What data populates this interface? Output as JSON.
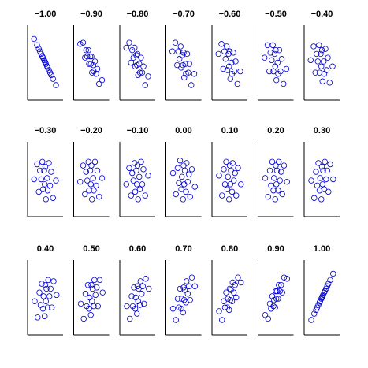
{
  "chart_data": [
    {
      "type": "scatter",
      "title": "−1.00",
      "x": [
        1.8,
        1.3,
        1.0,
        0.8,
        0.6,
        0.4,
        0.3,
        0.1,
        0.0,
        -0.1,
        -0.2,
        -0.4,
        -0.5,
        -0.7,
        -0.9,
        -1.1,
        -1.4,
        -1.9
      ],
      "y": [
        -1.8,
        -1.3,
        -1.0,
        -0.8,
        -0.6,
        -0.4,
        -0.3,
        -0.1,
        0.0,
        0.1,
        0.2,
        0.4,
        0.5,
        0.7,
        0.9,
        1.1,
        1.4,
        1.9
      ],
      "xlim": [
        -3,
        3
      ],
      "ylim": [
        -3,
        3
      ],
      "color": "#0000cc"
    },
    {
      "type": "scatter",
      "title": "−0.90",
      "x": [
        1.8,
        1.3,
        1.0,
        0.8,
        0.6,
        0.4,
        0.3,
        0.1,
        0.0,
        -0.1,
        -0.2,
        -0.4,
        -0.5,
        -0.7,
        -0.9,
        -1.1,
        -1.4,
        -1.9
      ],
      "y": [
        -1.4,
        -1.7,
        -0.5,
        -0.9,
        0.1,
        -0.7,
        -0.2,
        -0.8,
        0.5,
        -0.1,
        0.5,
        -0.1,
        1.0,
        0.5,
        1.0,
        0.4,
        1.6,
        1.5
      ],
      "xlim": [
        -3,
        3
      ],
      "ylim": [
        -3,
        3
      ],
      "color": "#0000cc"
    },
    {
      "type": "scatter",
      "title": "−0.80",
      "x": [
        1.8,
        1.3,
        1.0,
        0.8,
        0.6,
        0.4,
        0.3,
        0.1,
        0.0,
        -0.1,
        -0.2,
        -0.4,
        -0.5,
        -0.7,
        -0.9,
        -1.1,
        -1.4,
        -1.9
      ],
      "y": [
        -1.1,
        -1.8,
        -0.3,
        -0.8,
        0.4,
        -0.8,
        -0.1,
        -1.0,
        0.7,
        -0.2,
        0.6,
        -0.3,
        1.2,
        0.4,
        1.0,
        0.0,
        1.6,
        1.2
      ],
      "xlim": [
        -3,
        3
      ],
      "ylim": [
        -3,
        3
      ],
      "color": "#0000cc"
    },
    {
      "type": "scatter",
      "title": "−0.70",
      "x": [
        1.8,
        1.3,
        1.0,
        0.8,
        0.6,
        0.4,
        0.3,
        0.1,
        0.0,
        -0.1,
        -0.2,
        -0.4,
        -0.5,
        -0.7,
        -0.9,
        -1.1,
        -1.4,
        -1.9
      ],
      "y": [
        -0.9,
        -1.8,
        -0.1,
        -0.8,
        0.7,
        -0.9,
        -0.1,
        -1.2,
        0.8,
        -0.2,
        0.6,
        -0.4,
        1.3,
        0.3,
        0.9,
        -0.2,
        1.6,
        0.9
      ],
      "xlim": [
        -3,
        3
      ],
      "ylim": [
        -3,
        3
      ],
      "color": "#0000cc"
    },
    {
      "type": "scatter",
      "title": "−0.60",
      "x": [
        1.8,
        1.3,
        1.0,
        0.8,
        0.6,
        0.4,
        0.3,
        0.1,
        0.0,
        -0.1,
        -0.2,
        -0.4,
        -0.5,
        -0.7,
        -0.9,
        -1.1,
        -1.4,
        -1.9
      ],
      "y": [
        -0.7,
        -1.7,
        0.1,
        -0.7,
        0.8,
        -0.9,
        0.0,
        -1.3,
        0.9,
        -0.3,
        0.7,
        -0.6,
        1.3,
        0.3,
        0.9,
        -0.5,
        1.5,
        0.7
      ],
      "xlim": [
        -3,
        3
      ],
      "ylim": [
        -3,
        3
      ],
      "color": "#0000cc"
    },
    {
      "type": "scatter",
      "title": "−0.50",
      "x": [
        1.8,
        1.3,
        1.0,
        0.8,
        0.6,
        0.4,
        0.3,
        0.1,
        0.0,
        -0.1,
        -0.2,
        -0.4,
        -0.5,
        -0.7,
        -0.9,
        -1.1,
        -1.4,
        -1.9
      ],
      "y": [
        -0.5,
        -1.7,
        0.3,
        -0.7,
        1.0,
        -0.9,
        0.0,
        -1.4,
        1.0,
        -0.3,
        0.7,
        -0.7,
        1.4,
        0.2,
        0.8,
        -0.7,
        1.4,
        0.4
      ],
      "xlim": [
        -3,
        3
      ],
      "ylim": [
        -3,
        3
      ],
      "color": "#0000cc"
    },
    {
      "type": "scatter",
      "title": "−0.40",
      "x": [
        1.8,
        1.3,
        1.0,
        0.8,
        0.6,
        0.4,
        0.3,
        0.1,
        0.0,
        -0.1,
        -0.2,
        -0.4,
        -0.5,
        -0.7,
        -0.9,
        -1.1,
        -1.4,
        -1.9
      ],
      "y": [
        -0.3,
        -1.6,
        0.4,
        -0.6,
        1.1,
        -0.9,
        0.1,
        -1.5,
        1.0,
        -0.3,
        0.7,
        -0.8,
        1.4,
        0.1,
        0.7,
        -0.8,
        1.3,
        0.2
      ],
      "xlim": [
        -3,
        3
      ],
      "ylim": [
        -3,
        3
      ],
      "color": "#0000cc"
    },
    {
      "type": "scatter",
      "title": "−0.30",
      "x": [
        1.8,
        1.3,
        1.0,
        0.8,
        0.6,
        0.4,
        0.3,
        0.1,
        0.0,
        -0.1,
        -0.2,
        -0.4,
        -0.5,
        -0.7,
        -0.9,
        -1.1,
        -1.4,
        -1.9
      ],
      "y": [
        -0.1,
        -1.5,
        0.6,
        -0.5,
        1.3,
        -0.9,
        0.1,
        -1.6,
        1.0,
        -0.4,
        0.7,
        -0.8,
        1.4,
        0.0,
        0.7,
        -1.0,
        1.2,
        0.0
      ],
      "xlim": [
        -3,
        3
      ],
      "ylim": [
        -3,
        3
      ],
      "color": "#0000cc"
    },
    {
      "type": "scatter",
      "title": "−0.20",
      "x": [
        1.8,
        1.3,
        1.0,
        0.8,
        0.6,
        0.4,
        0.3,
        0.1,
        0.0,
        -0.1,
        -0.2,
        -0.4,
        -0.5,
        -0.7,
        -0.9,
        -1.1,
        -1.4,
        -1.9
      ],
      "y": [
        0.1,
        -1.4,
        0.7,
        -0.5,
        1.4,
        -0.9,
        0.1,
        -1.6,
        1.1,
        -0.4,
        0.7,
        -0.9,
        1.4,
        -0.1,
        0.6,
        -1.2,
        1.1,
        -0.2
      ],
      "xlim": [
        -3,
        3
      ],
      "ylim": [
        -3,
        3
      ],
      "color": "#0000cc"
    },
    {
      "type": "scatter",
      "title": "−0.10",
      "x": [
        1.8,
        1.3,
        1.0,
        0.8,
        0.6,
        0.4,
        0.3,
        0.1,
        0.0,
        -0.1,
        -0.2,
        -0.4,
        -0.5,
        -0.7,
        -0.9,
        -1.1,
        -1.4,
        -1.9
      ],
      "y": [
        0.3,
        -1.3,
        0.8,
        -0.4,
        1.4,
        -0.8,
        0.2,
        -1.6,
        1.1,
        -0.4,
        0.7,
        -1.0,
        1.3,
        -0.1,
        0.5,
        -1.3,
        0.9,
        -0.4
      ],
      "xlim": [
        -3,
        3
      ],
      "ylim": [
        -3,
        3
      ],
      "color": "#0000cc"
    },
    {
      "type": "scatter",
      "title": "0.00",
      "x": [
        -1.8,
        -1.3,
        -1.0,
        -0.8,
        -0.6,
        -0.4,
        -0.3,
        -0.1,
        0.0,
        0.1,
        0.2,
        0.4,
        0.5,
        0.7,
        0.9,
        1.1,
        1.4,
        1.9
      ],
      "y": [
        0.5,
        -1.2,
        0.9,
        -0.3,
        1.5,
        -0.8,
        0.2,
        -1.6,
        1.1,
        -0.4,
        0.7,
        -1.0,
        1.3,
        -0.2,
        0.4,
        -1.4,
        0.8,
        -0.6
      ],
      "xlim": [
        -3,
        3
      ],
      "ylim": [
        -3,
        3
      ],
      "color": "#0000cc"
    },
    {
      "type": "scatter",
      "title": "0.10",
      "x": [
        -1.8,
        -1.3,
        -1.0,
        -0.8,
        -0.6,
        -0.4,
        -0.3,
        -0.1,
        0.0,
        0.1,
        0.2,
        0.4,
        0.5,
        0.7,
        0.9,
        1.1,
        1.4,
        1.9
      ],
      "y": [
        0.3,
        -1.3,
        0.8,
        -0.4,
        1.4,
        -0.8,
        0.2,
        -1.6,
        1.1,
        -0.4,
        0.7,
        -1.0,
        1.3,
        -0.1,
        0.5,
        -1.3,
        0.9,
        -0.4
      ],
      "xlim": [
        -3,
        3
      ],
      "ylim": [
        -3,
        3
      ],
      "color": "#0000cc"
    },
    {
      "type": "scatter",
      "title": "0.20",
      "x": [
        -1.8,
        -1.3,
        -1.0,
        -0.8,
        -0.6,
        -0.4,
        -0.3,
        -0.1,
        0.0,
        0.1,
        0.2,
        0.4,
        0.5,
        0.7,
        0.9,
        1.1,
        1.4,
        1.9
      ],
      "y": [
        0.1,
        -1.4,
        0.7,
        -0.5,
        1.4,
        -0.9,
        0.1,
        -1.6,
        1.1,
        -0.4,
        0.7,
        -0.9,
        1.4,
        -0.1,
        0.6,
        -1.2,
        1.1,
        -0.2
      ],
      "xlim": [
        -3,
        3
      ],
      "ylim": [
        -3,
        3
      ],
      "color": "#0000cc"
    },
    {
      "type": "scatter",
      "title": "0.30",
      "x": [
        -1.8,
        -1.3,
        -1.0,
        -0.8,
        -0.6,
        -0.4,
        -0.3,
        -0.1,
        0.0,
        0.1,
        0.2,
        0.4,
        0.5,
        0.7,
        0.9,
        1.1,
        1.4,
        1.9
      ],
      "y": [
        -0.1,
        -1.5,
        0.6,
        -0.5,
        1.3,
        -0.9,
        0.1,
        -1.6,
        1.0,
        -0.4,
        0.7,
        -0.8,
        1.4,
        0.0,
        0.7,
        -1.0,
        1.2,
        0.0
      ],
      "xlim": [
        -3,
        3
      ],
      "ylim": [
        -3,
        3
      ],
      "color": "#0000cc"
    },
    {
      "type": "scatter",
      "title": "0.40",
      "x": [
        -1.8,
        -1.3,
        -1.0,
        -0.8,
        -0.6,
        -0.4,
        -0.3,
        -0.1,
        0.0,
        0.1,
        0.2,
        0.4,
        0.5,
        0.7,
        0.9,
        1.1,
        1.4,
        1.9
      ],
      "y": [
        -0.3,
        -1.6,
        0.4,
        -0.6,
        1.1,
        -0.9,
        0.1,
        -1.5,
        1.0,
        -0.3,
        0.7,
        -0.8,
        1.4,
        0.1,
        0.7,
        -0.8,
        1.3,
        0.2
      ],
      "xlim": [
        -3,
        3
      ],
      "ylim": [
        -3,
        3
      ],
      "color": "#0000cc"
    },
    {
      "type": "scatter",
      "title": "0.50",
      "x": [
        -1.8,
        -1.3,
        -1.0,
        -0.8,
        -0.6,
        -0.4,
        -0.3,
        -0.1,
        0.0,
        0.1,
        0.2,
        0.4,
        0.5,
        0.7,
        0.9,
        1.1,
        1.4,
        1.9
      ],
      "y": [
        -0.5,
        -1.7,
        0.3,
        -0.7,
        1.0,
        -0.9,
        0.0,
        -1.4,
        1.0,
        -0.3,
        0.7,
        -0.7,
        1.4,
        0.2,
        0.8,
        -0.7,
        1.4,
        0.4
      ],
      "xlim": [
        -3,
        3
      ],
      "ylim": [
        -3,
        3
      ],
      "color": "#0000cc"
    },
    {
      "type": "scatter",
      "title": "0.60",
      "x": [
        -1.8,
        -1.3,
        -1.0,
        -0.8,
        -0.6,
        -0.4,
        -0.3,
        -0.1,
        0.0,
        0.1,
        0.2,
        0.4,
        0.5,
        0.7,
        0.9,
        1.1,
        1.4,
        1.9
      ],
      "y": [
        -0.7,
        -1.7,
        0.1,
        -0.7,
        0.8,
        -0.9,
        0.0,
        -1.3,
        0.9,
        -0.3,
        0.7,
        -0.6,
        1.3,
        0.3,
        0.9,
        -0.5,
        1.5,
        0.7
      ],
      "xlim": [
        -3,
        3
      ],
      "ylim": [
        -3,
        3
      ],
      "color": "#0000cc"
    },
    {
      "type": "scatter",
      "title": "0.70",
      "x": [
        -1.8,
        -1.3,
        -1.0,
        -0.8,
        -0.6,
        -0.4,
        -0.3,
        -0.1,
        0.0,
        0.1,
        0.2,
        0.4,
        0.5,
        0.7,
        0.9,
        1.1,
        1.4,
        1.9
      ],
      "y": [
        -0.9,
        -1.8,
        -0.1,
        -0.8,
        0.7,
        -0.9,
        -0.1,
        -1.2,
        0.8,
        -0.2,
        0.6,
        -0.4,
        1.3,
        0.3,
        0.9,
        -0.2,
        1.6,
        0.9
      ],
      "xlim": [
        -3,
        3
      ],
      "ylim": [
        -3,
        3
      ],
      "color": "#0000cc"
    },
    {
      "type": "scatter",
      "title": "0.80",
      "x": [
        -1.8,
        -1.3,
        -1.0,
        -0.8,
        -0.6,
        -0.4,
        -0.3,
        -0.1,
        0.0,
        0.1,
        0.2,
        0.4,
        0.5,
        0.7,
        0.9,
        1.1,
        1.4,
        1.9
      ],
      "y": [
        -1.1,
        -1.8,
        -0.3,
        -0.8,
        0.4,
        -0.8,
        -0.1,
        -1.0,
        0.7,
        -0.2,
        0.6,
        -0.3,
        1.2,
        0.4,
        1.0,
        0.0,
        1.6,
        1.2
      ],
      "xlim": [
        -3,
        3
      ],
      "ylim": [
        -3,
        3
      ],
      "color": "#0000cc"
    },
    {
      "type": "scatter",
      "title": "0.90",
      "x": [
        -1.8,
        -1.3,
        -1.0,
        -0.8,
        -0.6,
        -0.4,
        -0.3,
        -0.1,
        0.0,
        0.1,
        0.2,
        0.4,
        0.5,
        0.7,
        0.9,
        1.1,
        1.4,
        1.9
      ],
      "y": [
        -1.4,
        -1.7,
        -0.5,
        -0.9,
        0.1,
        -0.7,
        -0.2,
        -0.8,
        0.5,
        -0.1,
        0.5,
        -0.1,
        1.0,
        0.5,
        1.0,
        0.4,
        1.6,
        1.5
      ],
      "xlim": [
        -3,
        3
      ],
      "ylim": [
        -3,
        3
      ],
      "color": "#0000cc"
    },
    {
      "type": "scatter",
      "title": "1.00",
      "x": [
        -1.8,
        -1.3,
        -1.0,
        -0.8,
        -0.6,
        -0.4,
        -0.3,
        -0.1,
        0.0,
        0.1,
        0.2,
        0.4,
        0.5,
        0.7,
        0.9,
        1.1,
        1.4,
        1.9
      ],
      "y": [
        -1.8,
        -1.3,
        -1.0,
        -0.8,
        -0.6,
        -0.4,
        -0.3,
        -0.1,
        0.0,
        0.1,
        0.2,
        0.4,
        0.5,
        0.7,
        0.9,
        1.1,
        1.4,
        1.9
      ],
      "xlim": [
        -3,
        3
      ],
      "ylim": [
        -3,
        3
      ],
      "color": "#0000cc"
    }
  ]
}
